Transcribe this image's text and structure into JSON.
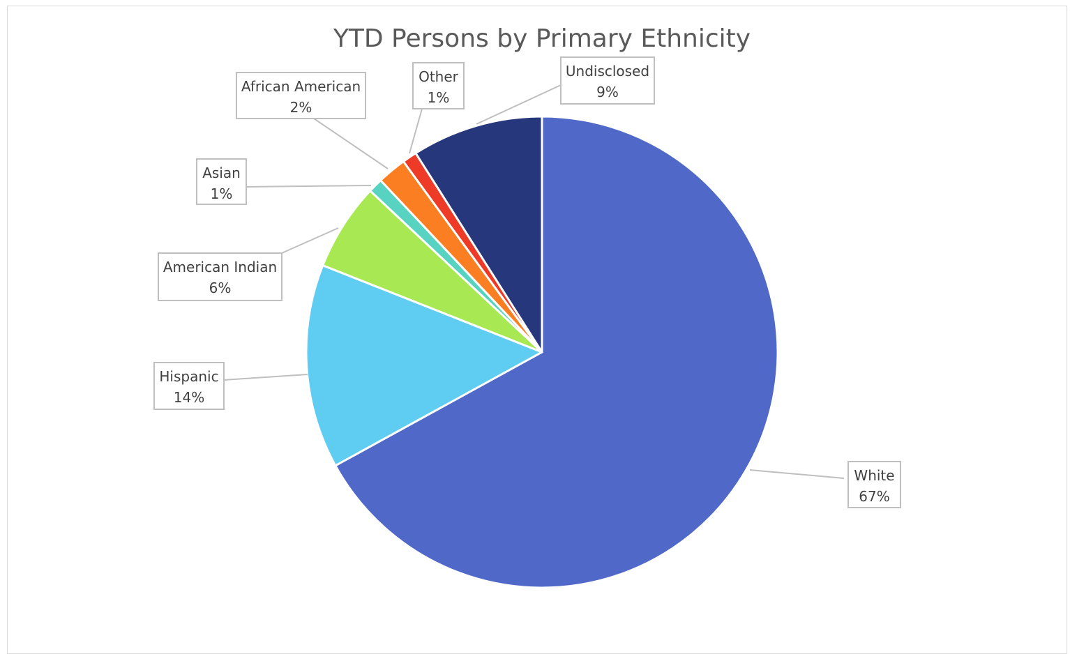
{
  "chart_data": {
    "type": "pie",
    "title": "YTD Persons by Primary Ethnicity",
    "start": "12 o'clock",
    "direction": "clockwise",
    "slices": [
      {
        "label": "White",
        "value": 67,
        "pct_label": "67%",
        "color": "#5068C8"
      },
      {
        "label": "Hispanic",
        "value": 14,
        "pct_label": "14%",
        "color": "#5FCCF2"
      },
      {
        "label": "American Indian",
        "value": 6,
        "pct_label": "6%",
        "color": "#A8E852"
      },
      {
        "label": "Asian",
        "value": 1,
        "pct_label": "1%",
        "color": "#59D3C1"
      },
      {
        "label": "African American",
        "value": 2,
        "pct_label": "2%",
        "color": "#FC7E22"
      },
      {
        "label": "Other",
        "value": 1,
        "pct_label": "1%",
        "color": "#EE3B28"
      },
      {
        "label": "Undisclosed",
        "value": 9,
        "pct_label": "9%",
        "color": "#26377C"
      }
    ],
    "slice_border_color": "#ffffff"
  }
}
